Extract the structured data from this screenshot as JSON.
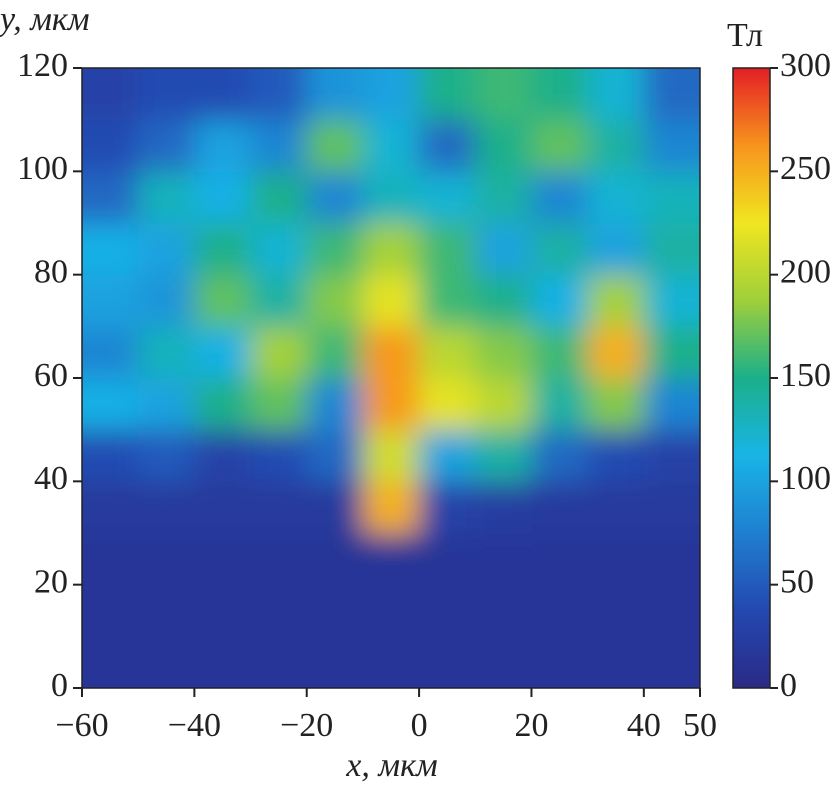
{
  "chart_data": {
    "type": "heatmap",
    "x_label": "x, мкм",
    "y_label": "y, мкм",
    "colorbar_label": "Тл",
    "x": [
      -55,
      -45,
      -35,
      -25,
      -15,
      -5,
      5,
      15,
      25,
      35,
      45
    ],
    "y": [
      5,
      15,
      25,
      35,
      45,
      55,
      65,
      75,
      85,
      95,
      105,
      115
    ],
    "z": [
      [
        15,
        15,
        15,
        15,
        15,
        15,
        15,
        15,
        15,
        15,
        15
      ],
      [
        15,
        15,
        15,
        15,
        15,
        15,
        15,
        15,
        15,
        15,
        15
      ],
      [
        15,
        15,
        15,
        15,
        15,
        15,
        15,
        15,
        15,
        15,
        15
      ],
      [
        20,
        20,
        20,
        20,
        20,
        250,
        30,
        25,
        20,
        20,
        20
      ],
      [
        40,
        50,
        30,
        40,
        60,
        210,
        100,
        140,
        60,
        40,
        30
      ],
      [
        110,
        100,
        150,
        170,
        80,
        260,
        220,
        200,
        140,
        180,
        80
      ],
      [
        80,
        130,
        110,
        190,
        160,
        260,
        200,
        180,
        160,
        250,
        150
      ],
      [
        100,
        90,
        170,
        140,
        180,
        220,
        160,
        150,
        110,
        190,
        120
      ],
      [
        110,
        100,
        150,
        120,
        160,
        190,
        160,
        100,
        140,
        100,
        140
      ],
      [
        60,
        130,
        110,
        150,
        80,
        130,
        120,
        140,
        80,
        120,
        130
      ],
      [
        40,
        60,
        100,
        80,
        170,
        120,
        60,
        150,
        170,
        140,
        80
      ],
      [
        30,
        40,
        40,
        50,
        90,
        100,
        150,
        160,
        150,
        120,
        60
      ]
    ],
    "xlim": [
      -60,
      50
    ],
    "ylim": [
      0,
      120
    ],
    "xticks": [
      {
        "value": -60,
        "label": "−60"
      },
      {
        "value": -40,
        "label": "−40"
      },
      {
        "value": -20,
        "label": "−20"
      },
      0,
      20,
      40,
      50
    ],
    "yticks": [
      0,
      20,
      40,
      60,
      80,
      100,
      120
    ],
    "clim": [
      0,
      300
    ],
    "cticks": [
      0,
      50,
      100,
      150,
      200,
      250,
      300
    ],
    "colorscale": [
      "#2a2a86",
      "#2448b0",
      "#1f7fd0",
      "#19b4e6",
      "#1ab08a",
      "#9fcf3a",
      "#f0e620",
      "#f7941d",
      "#e41e26"
    ]
  }
}
